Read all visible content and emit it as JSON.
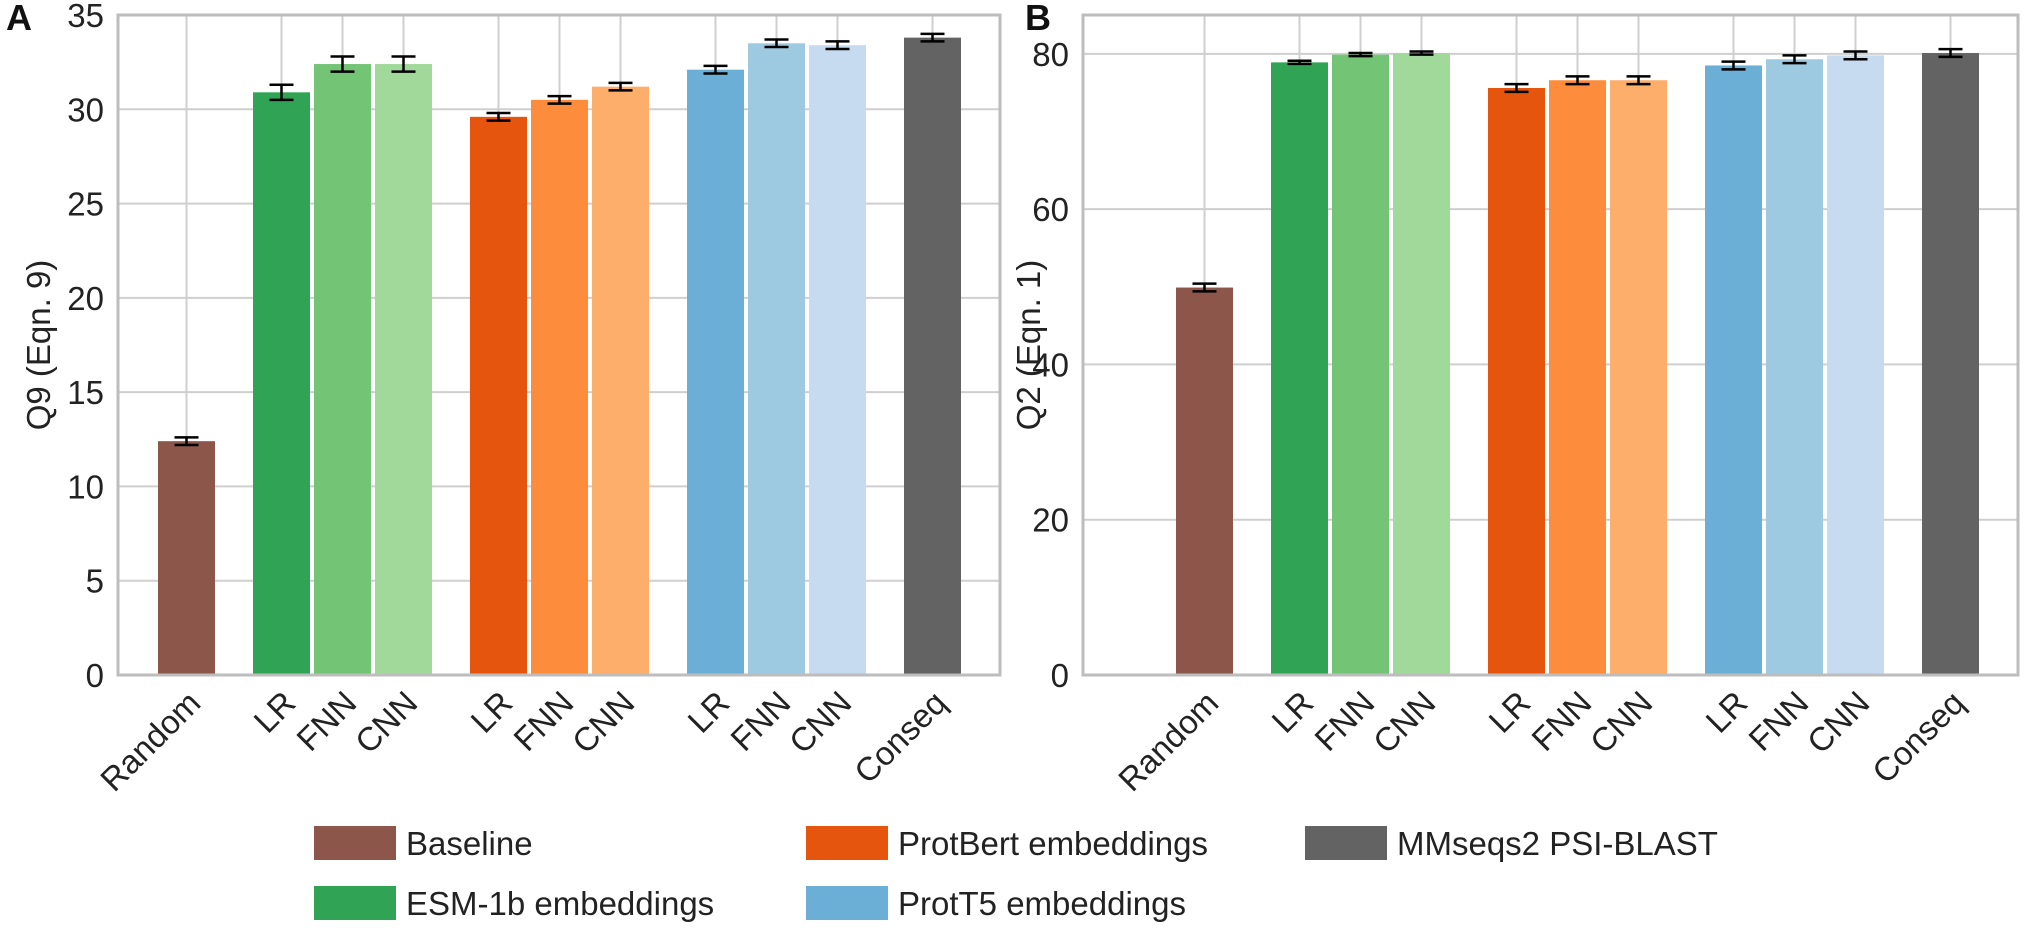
{
  "chart_data": [
    {
      "panel": "A",
      "type": "bar",
      "ylabel": "Q9 (Eqn. 9)",
      "ylim": [
        0,
        35
      ],
      "yticks": [
        0,
        5,
        10,
        15,
        20,
        25,
        30,
        35
      ],
      "grid": true,
      "groups": [
        {
          "legend": "Baseline",
          "bars": [
            {
              "label": "Random",
              "value": 12.4,
              "error": 0.2,
              "color": "#8c564b"
            }
          ]
        },
        {
          "legend": "ESM-1b embeddings",
          "bars": [
            {
              "label": "LR",
              "value": 30.9,
              "error": 0.4,
              "color": "#31a354"
            },
            {
              "label": "FNN",
              "value": 32.4,
              "error": 0.4,
              "color": "#74c476"
            },
            {
              "label": "CNN",
              "value": 32.4,
              "error": 0.4,
              "color": "#a1d99b"
            }
          ]
        },
        {
          "legend": "ProtBert embeddings",
          "bars": [
            {
              "label": "LR",
              "value": 29.6,
              "error": 0.2,
              "color": "#e6550d"
            },
            {
              "label": "FNN",
              "value": 30.5,
              "error": 0.2,
              "color": "#fd8d3c"
            },
            {
              "label": "CNN",
              "value": 31.2,
              "error": 0.2,
              "color": "#fdae6b"
            }
          ]
        },
        {
          "legend": "ProtT5 embeddings",
          "bars": [
            {
              "label": "LR",
              "value": 32.1,
              "error": 0.2,
              "color": "#6baed6"
            },
            {
              "label": "FNN",
              "value": 33.5,
              "error": 0.2,
              "color": "#9ecae1"
            },
            {
              "label": "CNN",
              "value": 33.4,
              "error": 0.2,
              "color": "#c6dbef"
            }
          ]
        },
        {
          "legend": "MMseqs2 PSI-BLAST",
          "bars": [
            {
              "label": "Conseq",
              "value": 33.8,
              "error": 0.2,
              "color": "#636363"
            }
          ]
        }
      ]
    },
    {
      "panel": "B",
      "type": "bar",
      "ylabel": "Q2 (Eqn. 1)",
      "ylim": [
        0,
        85
      ],
      "yticks": [
        0,
        20,
        40,
        60,
        80
      ],
      "grid": true,
      "groups": [
        {
          "legend": "Baseline",
          "bars": [
            {
              "label": "Random",
              "value": 49.9,
              "error": 0.5,
              "color": "#8c564b"
            }
          ]
        },
        {
          "legend": "ESM-1b embeddings",
          "bars": [
            {
              "label": "LR",
              "value": 78.9,
              "error": 0.2,
              "color": "#31a354"
            },
            {
              "label": "FNN",
              "value": 79.9,
              "error": 0.2,
              "color": "#74c476"
            },
            {
              "label": "CNN",
              "value": 80.1,
              "error": 0.2,
              "color": "#a1d99b"
            }
          ]
        },
        {
          "legend": "ProtBert embeddings",
          "bars": [
            {
              "label": "LR",
              "value": 75.6,
              "error": 0.5,
              "color": "#e6550d"
            },
            {
              "label": "FNN",
              "value": 76.6,
              "error": 0.5,
              "color": "#fd8d3c"
            },
            {
              "label": "CNN",
              "value": 76.6,
              "error": 0.5,
              "color": "#fdae6b"
            }
          ]
        },
        {
          "legend": "ProtT5 embeddings",
          "bars": [
            {
              "label": "LR",
              "value": 78.5,
              "error": 0.5,
              "color": "#6baed6"
            },
            {
              "label": "FNN",
              "value": 79.3,
              "error": 0.5,
              "color": "#9ecae1"
            },
            {
              "label": "CNN",
              "value": 79.8,
              "error": 0.5,
              "color": "#c6dbef"
            }
          ]
        },
        {
          "legend": "MMseqs2 PSI-BLAST",
          "bars": [
            {
              "label": "Conseq",
              "value": 80.1,
              "error": 0.5,
              "color": "#636363"
            }
          ]
        }
      ]
    }
  ],
  "legend": [
    {
      "label": "Baseline",
      "color": "#8c564b"
    },
    {
      "label": "ProtBert embeddings",
      "color": "#e6550d"
    },
    {
      "label": "MMseqs2 PSI-BLAST",
      "color": "#636363"
    },
    {
      "label": "ESM-1b embeddings",
      "color": "#31a354"
    },
    {
      "label": "ProtT5 embeddings",
      "color": "#6baed6"
    }
  ]
}
